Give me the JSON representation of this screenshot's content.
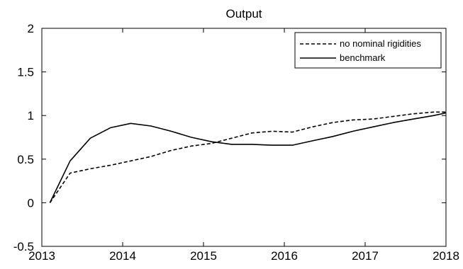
{
  "chart_data": {
    "type": "line",
    "title": "Output",
    "xlabel": "",
    "ylabel": "",
    "xlim": [
      2013,
      2018
    ],
    "ylim": [
      -0.5,
      2
    ],
    "x_ticks": [
      2013,
      2014,
      2015,
      2016,
      2017,
      2018
    ],
    "x_tick_labels": [
      "2013",
      "2014",
      "2015",
      "2016",
      "2017",
      "2018"
    ],
    "y_ticks": [
      -0.5,
      0,
      0.5,
      1,
      1.5,
      2
    ],
    "y_tick_labels": [
      "-0.5",
      "0",
      "0.5",
      "1",
      "1.5",
      "2"
    ],
    "grid": false,
    "legend_position": "top-right",
    "x": [
      2013.1,
      2013.35,
      2013.6,
      2013.85,
      2014.1,
      2014.35,
      2014.6,
      2014.85,
      2015.1,
      2015.35,
      2015.6,
      2015.85,
      2016.1,
      2016.35,
      2016.6,
      2016.85,
      2017.1,
      2017.35,
      2017.6,
      2017.85,
      2018.0
    ],
    "series": [
      {
        "name": "no nominal rigidities",
        "style": "dashed",
        "color": "#000000",
        "values": [
          0.0,
          0.34,
          0.39,
          0.43,
          0.48,
          0.53,
          0.6,
          0.65,
          0.68,
          0.74,
          0.8,
          0.82,
          0.81,
          0.87,
          0.92,
          0.95,
          0.96,
          0.99,
          1.02,
          1.04,
          1.04
        ]
      },
      {
        "name": "benchmark",
        "style": "solid",
        "color": "#000000",
        "values": [
          0.0,
          0.48,
          0.74,
          0.86,
          0.91,
          0.88,
          0.82,
          0.75,
          0.7,
          0.67,
          0.67,
          0.66,
          0.66,
          0.71,
          0.76,
          0.82,
          0.87,
          0.92,
          0.96,
          1.0,
          1.03
        ]
      }
    ]
  }
}
